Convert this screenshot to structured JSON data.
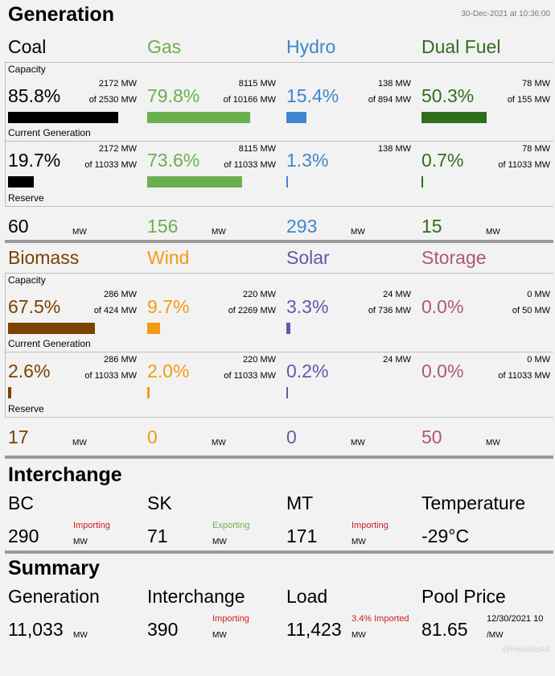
{
  "header": {
    "title": "Generation",
    "timestamp": "30-Dec-2021 at 10:36:00"
  },
  "labels": {
    "capacity": "Capacity",
    "current_generation": "Current Generation",
    "reserve": "Reserve",
    "mw": "MW"
  },
  "sections": [
    {
      "fuels": [
        {
          "name": "Coal",
          "color": "#000000",
          "cap_pct": "85.8%",
          "cap_mw": "2172 MW",
          "cap_of": "of 2530 MW",
          "cap_bar": 0.858,
          "gen_pct": "19.7%",
          "gen_mw": "2172 MW",
          "gen_of": "of 11033 MW",
          "gen_bar": 0.197,
          "reserve": "60"
        },
        {
          "name": "Gas",
          "color": "#6ab04c",
          "cap_pct": "79.8%",
          "cap_mw": "8115 MW",
          "cap_of": "of 10166 MW",
          "cap_bar": 0.798,
          "gen_pct": "73.6%",
          "gen_mw": "8115 MW",
          "gen_of": "of 11033 MW",
          "gen_bar": 0.736,
          "reserve": "156"
        },
        {
          "name": "Hydro",
          "color": "#3f86cf",
          "cap_pct": "15.4%",
          "cap_mw": "138 MW",
          "cap_of": "of 894 MW",
          "cap_bar": 0.154,
          "gen_pct": "1.3%",
          "gen_mw": "138 MW",
          "gen_of": "",
          "gen_bar": 0.013,
          "reserve": "293"
        },
        {
          "name": "Dual Fuel",
          "color": "#2f6e1c",
          "cap_pct": "50.3%",
          "cap_mw": "78 MW",
          "cap_of": "of 155 MW",
          "cap_bar": 0.503,
          "gen_pct": "0.7%",
          "gen_mw": "78 MW",
          "gen_of": "of 11033 MW",
          "gen_bar": 0.007,
          "reserve": "15"
        }
      ]
    },
    {
      "fuels": [
        {
          "name": "Biomass",
          "color": "#7b4200",
          "cap_pct": "67.5%",
          "cap_mw": "286 MW",
          "cap_of": "of 424 MW",
          "cap_bar": 0.675,
          "gen_pct": "2.6%",
          "gen_mw": "286 MW",
          "gen_of": "of 11033 MW",
          "gen_bar": 0.026,
          "reserve": "17"
        },
        {
          "name": "Wind",
          "color": "#f39a12",
          "cap_pct": "9.7%",
          "cap_mw": "220 MW",
          "cap_of": "of 2269 MW",
          "cap_bar": 0.097,
          "gen_pct": "2.0%",
          "gen_mw": "220 MW",
          "gen_of": "of 11033 MW",
          "gen_bar": 0.02,
          "reserve": "0"
        },
        {
          "name": "Solar",
          "color": "#6a55a8",
          "cap_pct": "3.3%",
          "cap_mw": "24 MW",
          "cap_of": "of 736 MW",
          "cap_bar": 0.033,
          "gen_pct": "0.2%",
          "gen_mw": "24 MW",
          "gen_of": "",
          "gen_bar": 0.002,
          "reserve": "0"
        },
        {
          "name": "Storage",
          "color": "#b0557e",
          "cap_pct": "0.0%",
          "cap_mw": "0 MW",
          "cap_of": "of 50 MW",
          "cap_bar": 0,
          "gen_pct": "0.0%",
          "gen_mw": "0 MW",
          "gen_of": "of 11033 MW",
          "gen_bar": 0,
          "reserve": "50"
        }
      ]
    }
  ],
  "interchange": {
    "title": "Interchange",
    "items": [
      {
        "name": "BC",
        "value": "290",
        "status": "Importing",
        "status_color": "#cc1f1f",
        "unit": "MW"
      },
      {
        "name": "SK",
        "value": "71",
        "status": "Exporting",
        "status_color": "#6ab04c",
        "unit": "MW"
      },
      {
        "name": "MT",
        "value": "171",
        "status": "Importing",
        "status_color": "#cc1f1f",
        "unit": "MW"
      },
      {
        "name": "Temperature",
        "value": "-29°C",
        "status": "",
        "status_color": "#000000",
        "unit": ""
      }
    ]
  },
  "summary": {
    "title": "Summary",
    "items": [
      {
        "name": "Generation",
        "value": "11,033",
        "status": "",
        "status_color": "#000000",
        "unit": "MW"
      },
      {
        "name": "Interchange",
        "value": "390",
        "status": "Importing",
        "status_color": "#cc1f1f",
        "unit": "MW"
      },
      {
        "name": "Load",
        "value": "11,423",
        "status": "3.4% Imported",
        "status_color": "#cc1f1f",
        "unit": "MW"
      },
      {
        "name": "Pool Price",
        "value": "81.65",
        "status": "12/30/2021 10",
        "status_color": "#000000",
        "unit": "/MW"
      }
    ]
  },
  "watermark": "@ReliableAB"
}
